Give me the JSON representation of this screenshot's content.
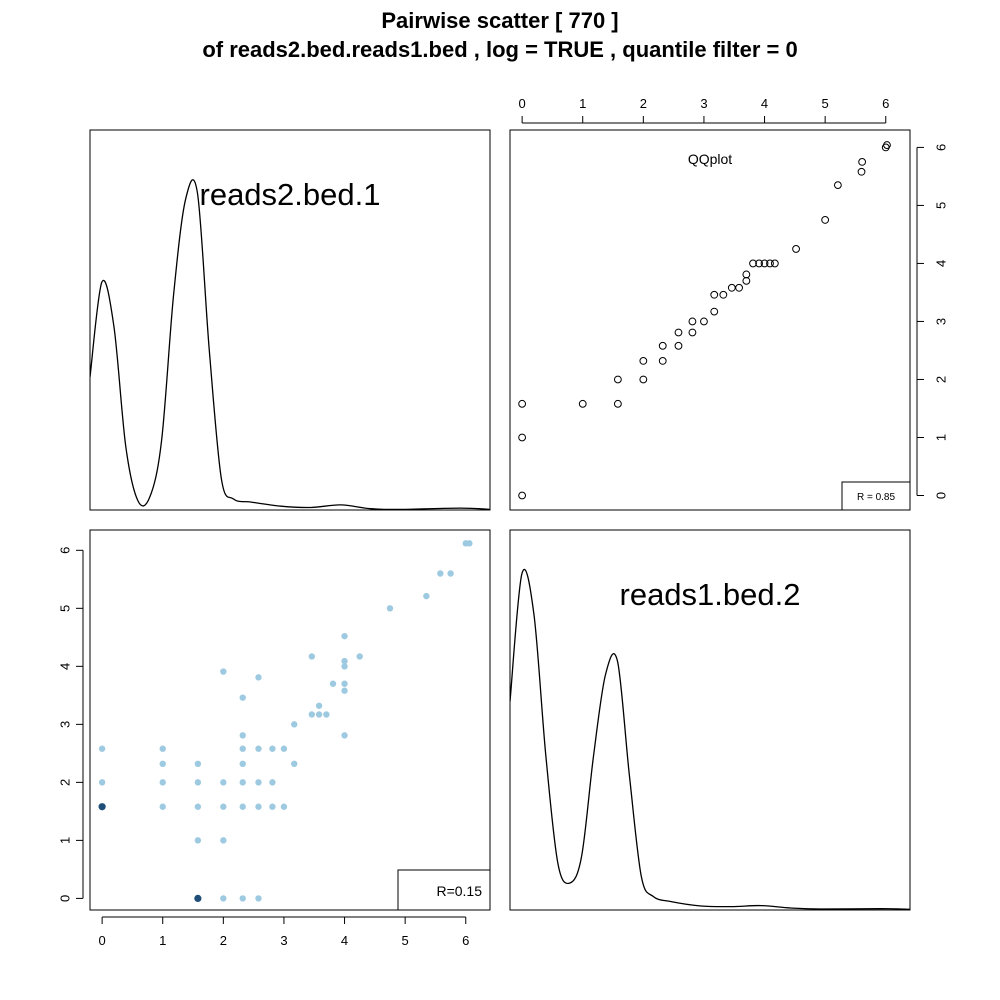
{
  "page": {
    "title_line1": "Pairwise scatter [ 770 ]",
    "title_line2": "of reads2.bed.reads1.bed , log = TRUE , quantile filter = 0"
  },
  "chart_data": [
    {
      "type": "line",
      "panel": "top-left",
      "label": "reads2.bed.1",
      "x": [
        -0.2,
        0,
        0.2,
        0.4,
        0.6,
        0.8,
        1.0,
        1.2,
        1.4,
        1.6,
        1.8,
        2.0,
        2.2,
        2.5,
        3.0,
        3.5,
        4.0,
        4.5,
        5.0,
        6.0,
        6.5
      ],
      "y": [
        0.42,
        0.72,
        0.58,
        0.2,
        0.03,
        0.04,
        0.22,
        0.68,
        0.98,
        1.0,
        0.5,
        0.1,
        0.035,
        0.025,
        0.012,
        0.008,
        0.016,
        0.004,
        0.002,
        0.006,
        0.002
      ],
      "ylim": [
        0,
        1.2
      ],
      "axes": "none"
    },
    {
      "type": "scatter",
      "panel": "top-right",
      "annotation": "QQplot",
      "legend_text": "R = 0.85",
      "legend_position": "bottom-right",
      "xlim": [
        -0.2,
        6.4
      ],
      "ylim": [
        -0.25,
        6.3
      ],
      "xticks": [
        0,
        1,
        2,
        3,
        4,
        5,
        6
      ],
      "yticks": [
        0,
        1,
        2,
        3,
        4,
        5,
        6
      ],
      "x_axis_side": "top",
      "y_axis_side": "right",
      "points": [
        [
          0,
          0
        ],
        [
          0,
          1
        ],
        [
          0,
          1.58
        ],
        [
          1,
          1.58
        ],
        [
          1.58,
          1.58
        ],
        [
          1.58,
          2
        ],
        [
          2,
          2
        ],
        [
          2,
          2.32
        ],
        [
          2.32,
          2.32
        ],
        [
          2.32,
          2.58
        ],
        [
          2.58,
          2.58
        ],
        [
          2.58,
          2.81
        ],
        [
          2.81,
          2.81
        ],
        [
          2.81,
          3
        ],
        [
          3,
          3
        ],
        [
          3.17,
          3.17
        ],
        [
          3.17,
          3.46
        ],
        [
          3.32,
          3.46
        ],
        [
          3.46,
          3.58
        ],
        [
          3.58,
          3.58
        ],
        [
          3.7,
          3.7
        ],
        [
          3.7,
          3.81
        ],
        [
          3.81,
          4
        ],
        [
          3.91,
          4
        ],
        [
          4,
          4
        ],
        [
          4.09,
          4
        ],
        [
          4.17,
          4
        ],
        [
          4.52,
          4.25
        ],
        [
          5,
          4.75
        ],
        [
          5.21,
          5.35
        ],
        [
          5.6,
          5.58
        ],
        [
          5.61,
          5.75
        ],
        [
          6.0,
          6.0
        ],
        [
          6.02,
          6.04
        ]
      ]
    },
    {
      "type": "scatter",
      "panel": "bottom-left",
      "legend_text": "R=0.15",
      "legend_position": "bottom-right",
      "xlim": [
        -0.2,
        6.4
      ],
      "ylim": [
        -0.2,
        6.35
      ],
      "xticks": [
        0,
        1,
        2,
        3,
        4,
        5,
        6
      ],
      "yticks": [
        0,
        1,
        2,
        3,
        4,
        5,
        6
      ],
      "x_axis_side": "bottom",
      "y_axis_side": "left",
      "point_color": "#9ecae1",
      "dense_color": "#1f4e79",
      "points": [
        [
          0,
          2.58
        ],
        [
          0,
          2
        ],
        [
          1,
          2.58
        ],
        [
          1,
          2.32
        ],
        [
          1,
          2
        ],
        [
          1,
          1.58
        ],
        [
          1.58,
          2.32
        ],
        [
          1.58,
          2
        ],
        [
          1.58,
          1.58
        ],
        [
          1.58,
          1
        ],
        [
          2,
          3.91
        ],
        [
          2,
          2
        ],
        [
          2,
          1.58
        ],
        [
          2,
          1
        ],
        [
          2,
          0
        ],
        [
          2.32,
          3.46
        ],
        [
          2.32,
          2.81
        ],
        [
          2.32,
          2.58
        ],
        [
          2.32,
          2.32
        ],
        [
          2.32,
          2
        ],
        [
          2.32,
          1.58
        ],
        [
          2.32,
          0
        ],
        [
          2.58,
          3.81
        ],
        [
          2.58,
          2.58
        ],
        [
          2.58,
          2
        ],
        [
          2.58,
          1.58
        ],
        [
          2.58,
          0
        ],
        [
          2.81,
          2.58
        ],
        [
          2.81,
          2
        ],
        [
          2.81,
          1.58
        ],
        [
          3,
          2.58
        ],
        [
          3,
          1.58
        ],
        [
          3.17,
          3
        ],
        [
          3.17,
          2.32
        ],
        [
          3.46,
          4.17
        ],
        [
          3.46,
          3.17
        ],
        [
          3.58,
          3.32
        ],
        [
          3.58,
          3.17
        ],
        [
          3.7,
          3.17
        ],
        [
          3.81,
          3.7
        ],
        [
          4,
          4.52
        ],
        [
          4,
          4.09
        ],
        [
          4,
          4
        ],
        [
          4,
          3.7
        ],
        [
          4,
          3.58
        ],
        [
          4,
          2.81
        ],
        [
          4.25,
          4.17
        ],
        [
          4.75,
          5
        ],
        [
          5.35,
          5.21
        ],
        [
          5.58,
          5.6
        ],
        [
          5.75,
          5.6
        ],
        [
          6.0,
          6.12
        ],
        [
          6.06,
          6.12
        ]
      ],
      "dense_points": [
        [
          0,
          1.58
        ],
        [
          1.58,
          0
        ]
      ]
    },
    {
      "type": "line",
      "panel": "bottom-right",
      "label": "reads1.bed.2",
      "x": [
        -0.2,
        0,
        0.2,
        0.4,
        0.6,
        0.8,
        1.0,
        1.2,
        1.4,
        1.6,
        1.8,
        2.0,
        2.2,
        2.5,
        3.0,
        3.5,
        4.0,
        4.5,
        5.0,
        6.0,
        6.5
      ],
      "y": [
        0.62,
        1.0,
        0.88,
        0.46,
        0.14,
        0.08,
        0.16,
        0.46,
        0.7,
        0.74,
        0.4,
        0.1,
        0.04,
        0.025,
        0.012,
        0.01,
        0.013,
        0.006,
        0.003,
        0.004,
        0.002
      ],
      "ylim": [
        0,
        1.13
      ],
      "axes": "none"
    }
  ]
}
